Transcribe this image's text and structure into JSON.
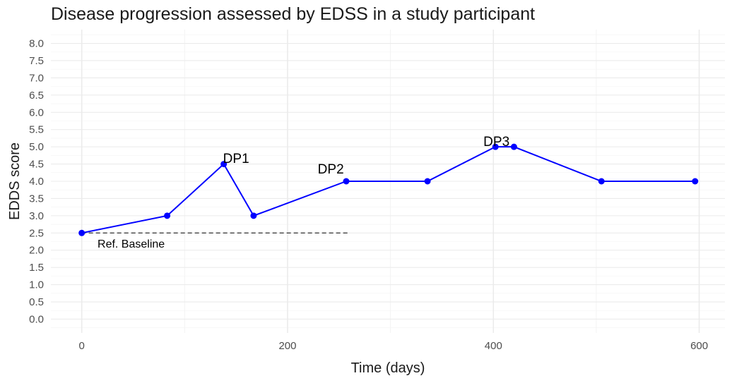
{
  "chart_data": {
    "type": "line",
    "title": "Disease progression assessed by EDSS in a study participant",
    "xlabel": "Time (days)",
    "ylabel": "EDDS score",
    "xlim": [
      -30,
      625
    ],
    "ylim": [
      -0.4,
      8.4
    ],
    "x_ticks": [
      0,
      200,
      400,
      600
    ],
    "y_ticks": [
      0.0,
      0.5,
      1.0,
      1.5,
      2.0,
      2.5,
      3.0,
      3.5,
      4.0,
      4.5,
      5.0,
      5.5,
      6.0,
      6.5,
      7.0,
      7.5,
      8.0
    ],
    "y_tick_labels": [
      "0.0",
      "0.5",
      "1.0",
      "1.5",
      "2.0",
      "2.5",
      "3.0",
      "3.5",
      "4.0",
      "4.5",
      "5.0",
      "5.5",
      "6.0",
      "6.5",
      "7.0",
      "7.5",
      "8.0"
    ],
    "x_tick_labels": [
      "0",
      "200",
      "400",
      "600"
    ],
    "grid": true,
    "series": [
      {
        "color": "#0000ff",
        "x": [
          0,
          83,
          138,
          167,
          257,
          336,
          402,
          420,
          505,
          596
        ],
        "y": [
          2.5,
          3.0,
          4.5,
          3.0,
          4.0,
          4.0,
          5.0,
          5.0,
          4.0,
          4.0
        ]
      }
    ],
    "reference_line": {
      "label": "Ref. Baseline",
      "y": 2.5,
      "x_start": 0,
      "x_end": 260
    },
    "annotations": [
      {
        "text": "DP1",
        "x": 150,
        "y": 4.65
      },
      {
        "text": "DP2",
        "x": 242,
        "y": 4.35
      },
      {
        "text": "DP3",
        "x": 403,
        "y": 5.15
      },
      {
        "text": "Ref. Baseline",
        "x": 48,
        "y": 2.2
      }
    ]
  }
}
